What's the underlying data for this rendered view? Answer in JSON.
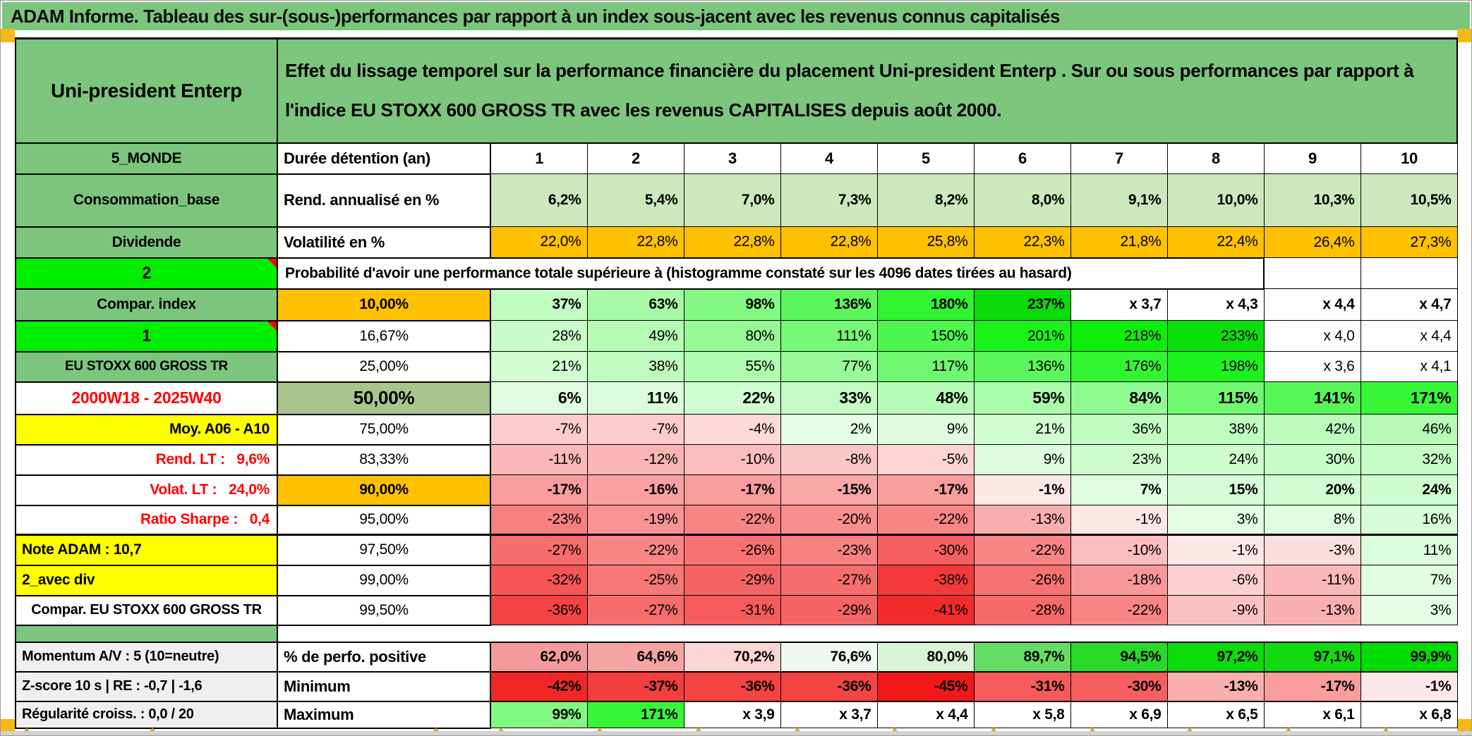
{
  "window": {
    "title": "ADAM Informe. Tableau des sur-(sous-)performances par rapport à un index sous-jacent avec les revenus connus capitalisés"
  },
  "colors": {
    "title_bar_green": "#7cc57d",
    "label_green": "#7cc57d",
    "bright_green": "#00ee00",
    "orange": "#ffc000",
    "yellow": "#ffff00",
    "sage": "#a9c48c",
    "rend_row_green": "#cce8bd",
    "gray_label": "#efefef",
    "red_text": "#ff0000",
    "marker_red": "#ff0000",
    "edge_marker_orange": "#f5b916",
    "grid_border": "#000000"
  },
  "color_scale": {
    "green_ramp_max": 237,
    "red_ramp_max": 45
  },
  "header": {
    "asset_name": "Uni-president Enterp",
    "description": "Effet du lissage temporel sur la performance financière du placement Uni-president Enterp . Sur ou sous performances par rapport à l'indice EU STOXX 600 GROSS TR avec les revenus CAPITALISES depuis août 2000."
  },
  "table": {
    "rows": [
      {
        "kind": "cols",
        "label": {
          "t": "5_MONDE",
          "bg": "green"
        },
        "param": {
          "t": "Durée détention (an)",
          "bold": true,
          "align": "l",
          "fs": 22
        },
        "cells": [
          {
            "t": "1"
          },
          {
            "t": "2"
          },
          {
            "t": "3"
          },
          {
            "t": "4"
          },
          {
            "t": "5"
          },
          {
            "t": "6"
          },
          {
            "t": "7"
          },
          {
            "t": "8"
          },
          {
            "t": "9"
          },
          {
            "t": "10"
          }
        ]
      },
      {
        "kind": "green-band",
        "label": {
          "t": "Consommation_base",
          "bg": "green"
        },
        "param": {
          "t": "Rend. annualisé en %",
          "bold": true,
          "align": "l",
          "fs": 22
        },
        "cells": [
          {
            "t": "6,2%"
          },
          {
            "t": "5,4%"
          },
          {
            "t": "7,0%"
          },
          {
            "t": "7,3%"
          },
          {
            "t": "8,2%"
          },
          {
            "t": "8,0%"
          },
          {
            "t": "9,1%"
          },
          {
            "t": "10,0%"
          },
          {
            "t": "10,3%"
          },
          {
            "t": "10,5%"
          }
        ]
      },
      {
        "kind": "orange-band",
        "label": {
          "t": "Dividende",
          "bg": "green"
        },
        "param": {
          "t": "Volatilité en %",
          "bold": true,
          "align": "l",
          "fs": 22
        },
        "cells": [
          {
            "t": "22,0%"
          },
          {
            "t": "22,8%"
          },
          {
            "t": "22,8%"
          },
          {
            "t": "22,8%"
          },
          {
            "t": "25,8%"
          },
          {
            "t": "22,3%"
          },
          {
            "t": "21,8%"
          },
          {
            "t": "22,4%"
          },
          {
            "t": "26,4%"
          },
          {
            "t": "27,3%"
          }
        ]
      },
      {
        "kind": "proba",
        "label": {
          "t": "2",
          "bg": "bright",
          "marker": true,
          "fs": 24
        },
        "text": "Probabilité d'avoir une performance totale supérieure à (histogramme constaté sur les 4096 dates tirées au hasard)"
      },
      {
        "kind": "scale",
        "bold": true,
        "label": {
          "t": "Compar. index",
          "bg": "green"
        },
        "param": {
          "t": "10,00%",
          "bg": "orange",
          "bold": true
        },
        "cells": [
          {
            "t": "37%",
            "v": 37
          },
          {
            "t": "63%",
            "v": 63
          },
          {
            "t": "98%",
            "v": 98
          },
          {
            "t": "136%",
            "v": 136
          },
          {
            "t": "180%",
            "v": 180
          },
          {
            "t": "237%",
            "v": 237
          },
          {
            "t": "x 3,7"
          },
          {
            "t": "x 4,3"
          },
          {
            "t": "x 4,4"
          },
          {
            "t": "x 4,7"
          }
        ]
      },
      {
        "kind": "scale",
        "label": {
          "t": "1",
          "bg": "bright",
          "marker": true,
          "fs": 24
        },
        "param": {
          "t": "16,67%"
        },
        "cells": [
          {
            "t": "28%",
            "v": 28
          },
          {
            "t": "49%",
            "v": 49
          },
          {
            "t": "80%",
            "v": 80
          },
          {
            "t": "111%",
            "v": 111
          },
          {
            "t": "150%",
            "v": 150
          },
          {
            "t": "201%",
            "v": 201
          },
          {
            "t": "218%",
            "v": 218
          },
          {
            "t": "233%",
            "v": 233
          },
          {
            "t": "x 4,0"
          },
          {
            "t": "x 4,4"
          }
        ]
      },
      {
        "kind": "scale",
        "label": {
          "t": "EU STOXX 600 GROSS TR",
          "bg": "green",
          "fs": 19
        },
        "param": {
          "t": "25,00%"
        },
        "cells": [
          {
            "t": "21%",
            "v": 21
          },
          {
            "t": "38%",
            "v": 38
          },
          {
            "t": "55%",
            "v": 55
          },
          {
            "t": "77%",
            "v": 77
          },
          {
            "t": "117%",
            "v": 117
          },
          {
            "t": "136%",
            "v": 136
          },
          {
            "t": "176%",
            "v": 176
          },
          {
            "t": "198%",
            "v": 198
          },
          {
            "t": "x 3,6"
          },
          {
            "t": "x 4,1"
          }
        ]
      },
      {
        "kind": "scale",
        "bold": true,
        "big": true,
        "label": {
          "t": "2000W18 - 2025W40",
          "fg": "red",
          "fs": 23
        },
        "param": {
          "t": "50,00%",
          "bg": "sage",
          "bold": true,
          "fs": 26
        },
        "cells": [
          {
            "t": "6%",
            "v": 6
          },
          {
            "t": "11%",
            "v": 11
          },
          {
            "t": "22%",
            "v": 22
          },
          {
            "t": "33%",
            "v": 33
          },
          {
            "t": "48%",
            "v": 48
          },
          {
            "t": "59%",
            "v": 59
          },
          {
            "t": "84%",
            "v": 84
          },
          {
            "t": "115%",
            "v": 115
          },
          {
            "t": "141%",
            "v": 141
          },
          {
            "t": "171%",
            "v": 171
          }
        ]
      },
      {
        "kind": "scale",
        "label": {
          "t": "Moy. A06 - A10",
          "bg": "yellow",
          "align": "r"
        },
        "param": {
          "t": "75,00%"
        },
        "cells": [
          {
            "t": "-7%",
            "v": -7
          },
          {
            "t": "-7%",
            "v": -7
          },
          {
            "t": "-4%",
            "v": -4
          },
          {
            "t": "2%",
            "v": 2
          },
          {
            "t": "9%",
            "v": 9
          },
          {
            "t": "21%",
            "v": 21
          },
          {
            "t": "36%",
            "v": 36
          },
          {
            "t": "38%",
            "v": 38
          },
          {
            "t": "42%",
            "v": 42
          },
          {
            "t": "46%",
            "v": 46
          }
        ]
      },
      {
        "kind": "scale",
        "label": {
          "t": "Rend. LT :   9,6%",
          "fg": "red",
          "align": "r"
        },
        "param": {
          "t": "83,33%"
        },
        "cells": [
          {
            "t": "-11%",
            "v": -11
          },
          {
            "t": "-12%",
            "v": -12
          },
          {
            "t": "-10%",
            "v": -10
          },
          {
            "t": "-8%",
            "v": -8
          },
          {
            "t": "-5%",
            "v": -5
          },
          {
            "t": "9%",
            "v": 9
          },
          {
            "t": "23%",
            "v": 23
          },
          {
            "t": "24%",
            "v": 24
          },
          {
            "t": "30%",
            "v": 30
          },
          {
            "t": "32%",
            "v": 32
          }
        ]
      },
      {
        "kind": "scale",
        "bold": true,
        "label": {
          "t": "Volat. LT :   24,0%",
          "fg": "red",
          "align": "r"
        },
        "param": {
          "t": "90,00%",
          "bg": "orange",
          "bold": true
        },
        "cells": [
          {
            "t": "-17%",
            "v": -17
          },
          {
            "t": "-16%",
            "v": -16
          },
          {
            "t": "-17%",
            "v": -17
          },
          {
            "t": "-15%",
            "v": -15
          },
          {
            "t": "-17%",
            "v": -17
          },
          {
            "t": "-1%",
            "v": -1
          },
          {
            "t": "7%",
            "v": 7
          },
          {
            "t": "15%",
            "v": 15
          },
          {
            "t": "20%",
            "v": 20
          },
          {
            "t": "24%",
            "v": 24
          }
        ]
      },
      {
        "kind": "scale",
        "label": {
          "t": "Ratio Sharpe :   0,4",
          "fg": "red",
          "align": "r"
        },
        "param": {
          "t": "95,00%"
        },
        "cells": [
          {
            "t": "-23%",
            "v": -23
          },
          {
            "t": "-19%",
            "v": -19
          },
          {
            "t": "-22%",
            "v": -22
          },
          {
            "t": "-20%",
            "v": -20
          },
          {
            "t": "-22%",
            "v": -22
          },
          {
            "t": "-13%",
            "v": -13
          },
          {
            "t": "-1%",
            "v": -1
          },
          {
            "t": "3%",
            "v": 3
          },
          {
            "t": "8%",
            "v": 8
          },
          {
            "t": "16%",
            "v": 16
          }
        ]
      },
      {
        "kind": "scale",
        "thickTop": true,
        "label": {
          "t": "Note ADAM : 10,7",
          "bg": "yellow",
          "align": "l"
        },
        "param": {
          "t": "97,50%"
        },
        "cells": [
          {
            "t": "-27%",
            "v": -27
          },
          {
            "t": "-22%",
            "v": -22
          },
          {
            "t": "-26%",
            "v": -26
          },
          {
            "t": "-23%",
            "v": -23
          },
          {
            "t": "-30%",
            "v": -30
          },
          {
            "t": "-22%",
            "v": -22
          },
          {
            "t": "-10%",
            "v": -10
          },
          {
            "t": "-1%",
            "v": -1
          },
          {
            "t": "-3%",
            "v": -3
          },
          {
            "t": "11%",
            "v": 11
          }
        ]
      },
      {
        "kind": "scale",
        "label": {
          "t": "2_avec div",
          "bg": "yellow",
          "align": "l"
        },
        "param": {
          "t": "99,00%"
        },
        "cells": [
          {
            "t": "-32%",
            "v": -32
          },
          {
            "t": "-25%",
            "v": -25
          },
          {
            "t": "-29%",
            "v": -29
          },
          {
            "t": "-27%",
            "v": -27
          },
          {
            "t": "-38%",
            "v": -38
          },
          {
            "t": "-26%",
            "v": -26
          },
          {
            "t": "-18%",
            "v": -18
          },
          {
            "t": "-6%",
            "v": -6
          },
          {
            "t": "-11%",
            "v": -11
          },
          {
            "t": "7%",
            "v": 7
          }
        ]
      },
      {
        "kind": "scale",
        "label": {
          "t": "Compar. EU STOXX 600 GROSS TR",
          "fs": 20
        },
        "param": {
          "t": "99,50%"
        },
        "cells": [
          {
            "t": "-36%",
            "v": -36
          },
          {
            "t": "-27%",
            "v": -27
          },
          {
            "t": "-31%",
            "v": -31
          },
          {
            "t": "-29%",
            "v": -29
          },
          {
            "t": "-41%",
            "v": -41
          },
          {
            "t": "-28%",
            "v": -28
          },
          {
            "t": "-22%",
            "v": -22
          },
          {
            "t": "-9%",
            "v": -9
          },
          {
            "t": "-13%",
            "v": -13
          },
          {
            "t": "3%",
            "v": 3
          }
        ]
      },
      {
        "kind": "sep"
      },
      {
        "kind": "scale",
        "bold": true,
        "thick2": true,
        "label": {
          "t": "Momentum A/V : 5 (10=neutre)",
          "bg": "gray",
          "align": "l",
          "fs": 20
        },
        "param": {
          "t": "% de perfo. positive",
          "bold": true,
          "align": "l",
          "fs": 22
        },
        "cells": [
          {
            "t": "62,0%",
            "bg": "#f49a9a"
          },
          {
            "t": "64,6%",
            "bg": "#f5a4a2"
          },
          {
            "t": "70,2%",
            "bg": "#fad6d4"
          },
          {
            "t": "76,6%",
            "bg": "#eff9ef"
          },
          {
            "t": "80,0%",
            "bg": "#d9f4d6"
          },
          {
            "t": "89,7%",
            "bg": "#63dd63"
          },
          {
            "t": "94,5%",
            "bg": "#28da28"
          },
          {
            "t": "97,2%",
            "bg": "#0cdb0c"
          },
          {
            "t": "97,1%",
            "bg": "#10db10"
          },
          {
            "t": "99,9%",
            "bg": "#02dc02"
          }
        ]
      },
      {
        "kind": "scale",
        "bold": true,
        "thick2": true,
        "label": {
          "t": "Z-score 10 s | RE : -0,7 | -1,6",
          "bg": "gray",
          "align": "l",
          "fs": 20
        },
        "param": {
          "t": "Minimum",
          "bold": true,
          "align": "l",
          "fs": 22
        },
        "cells": [
          {
            "t": "-42%",
            "v": -42
          },
          {
            "t": "-37%",
            "v": -37
          },
          {
            "t": "-36%",
            "v": -36
          },
          {
            "t": "-36%",
            "v": -36
          },
          {
            "t": "-45%",
            "v": -45
          },
          {
            "t": "-31%",
            "v": -31
          },
          {
            "t": "-30%",
            "v": -30
          },
          {
            "t": "-13%",
            "v": -13
          },
          {
            "t": "-17%",
            "v": -17
          },
          {
            "t": "-1%",
            "v": -1
          }
        ]
      },
      {
        "kind": "scale",
        "bold": true,
        "thick2": true,
        "label": {
          "t": "Régularité croiss. : 0,0 / 20",
          "bg": "gray",
          "align": "l",
          "fs": 20
        },
        "param": {
          "t": "Maximum",
          "bold": true,
          "align": "l",
          "fs": 22
        },
        "cells": [
          {
            "t": "99%",
            "v": 99
          },
          {
            "t": "171%",
            "v": 171
          },
          {
            "t": "x 3,9"
          },
          {
            "t": "x 3,7"
          },
          {
            "t": "x 4,4"
          },
          {
            "t": "x 5,8"
          },
          {
            "t": "x 6,9"
          },
          {
            "t": "x 6,5"
          },
          {
            "t": "x 6,1"
          },
          {
            "t": "x 6,8"
          }
        ]
      }
    ]
  }
}
